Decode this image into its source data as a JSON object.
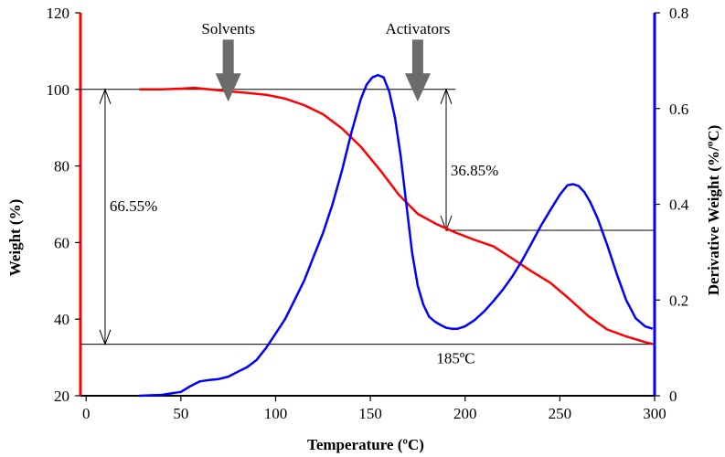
{
  "chart_data": {
    "type": "line",
    "xlabel": "Temperature (ºC)",
    "ylabel_left": "Weight (%)",
    "ylabel_right": "Derivative Weight (%/ºC)",
    "xlim": [
      -3,
      300
    ],
    "ylim_left": [
      20,
      120
    ],
    "ylim_right": [
      0,
      0.8
    ],
    "xticks": [
      0,
      50,
      100,
      150,
      200,
      250,
      300
    ],
    "yticks_left": [
      20,
      40,
      60,
      80,
      100,
      120
    ],
    "yticks_right": [
      0,
      0.2,
      0.4,
      0.6,
      0.8
    ],
    "xtick_labels": [
      "0",
      "50",
      "100",
      "150",
      "200",
      "250",
      "300"
    ],
    "ytick_labels_left": [
      "20",
      "40",
      "60",
      "80",
      "100",
      "120"
    ],
    "ytick_labels_right": [
      "0",
      "0.2",
      "0.4",
      "0.6",
      "0.8"
    ],
    "grid": false,
    "legend": "none",
    "colors": {
      "weight": "#ff0000",
      "derivative": "#0000ff",
      "arrow": "#6b6b6b",
      "lines": "#000000"
    },
    "series": [
      {
        "axis": "left",
        "x": [
          28,
          40,
          50,
          57,
          65,
          75,
          85,
          95,
          105,
          115,
          125,
          135,
          145,
          155,
          165,
          175,
          185,
          195,
          205,
          215,
          225,
          235,
          245,
          255,
          265,
          275,
          285,
          295,
          299
        ],
        "values": [
          100.0,
          100.0,
          100.2,
          100.4,
          100.0,
          99.5,
          99.1,
          98.6,
          97.6,
          95.9,
          93.5,
          89.8,
          85.0,
          79.0,
          72.5,
          67.5,
          64.8,
          62.6,
          60.7,
          59.0,
          55.8,
          52.5,
          49.5,
          45.3,
          40.8,
          37.3,
          35.5,
          34.0,
          33.5
        ]
      },
      {
        "axis": "right",
        "x": [
          28,
          40,
          45,
          50,
          55,
          60,
          65,
          70,
          75,
          80,
          85,
          90,
          95,
          100,
          105,
          110,
          115,
          120,
          125,
          130,
          135,
          140,
          145,
          148,
          151,
          154,
          157,
          160,
          163,
          166,
          169,
          172,
          175,
          178,
          181,
          184,
          187,
          190,
          193,
          196,
          200,
          205,
          210,
          215,
          220,
          225,
          230,
          235,
          240,
          245,
          250,
          254,
          257,
          260,
          263,
          266,
          270,
          275,
          280,
          285,
          290,
          295,
          299
        ],
        "values": [
          0.0,
          0.002,
          0.005,
          0.008,
          0.02,
          0.03,
          0.033,
          0.035,
          0.04,
          0.05,
          0.06,
          0.075,
          0.1,
          0.13,
          0.16,
          0.2,
          0.24,
          0.29,
          0.34,
          0.4,
          0.47,
          0.55,
          0.62,
          0.65,
          0.665,
          0.67,
          0.665,
          0.635,
          0.58,
          0.5,
          0.4,
          0.3,
          0.23,
          0.19,
          0.165,
          0.155,
          0.148,
          0.142,
          0.14,
          0.14,
          0.145,
          0.158,
          0.176,
          0.198,
          0.222,
          0.25,
          0.282,
          0.318,
          0.355,
          0.388,
          0.42,
          0.44,
          0.442,
          0.438,
          0.425,
          0.405,
          0.37,
          0.315,
          0.255,
          0.2,
          0.162,
          0.145,
          0.14
        ]
      }
    ],
    "reference_lines_left": [
      100,
      63.2,
      33.45
    ],
    "annotations": [
      {
        "text": "Solvents",
        "x": 75,
        "y": 114.5
      },
      {
        "text": "Activators",
        "x": 175,
        "y": 114.5
      },
      {
        "text": "66.55%",
        "x": 25,
        "y": 68.2
      },
      {
        "text": "36.85%",
        "x": 205,
        "y": 77.5
      },
      {
        "text": "185ºC",
        "x": 195,
        "y": 28.5
      }
    ]
  }
}
